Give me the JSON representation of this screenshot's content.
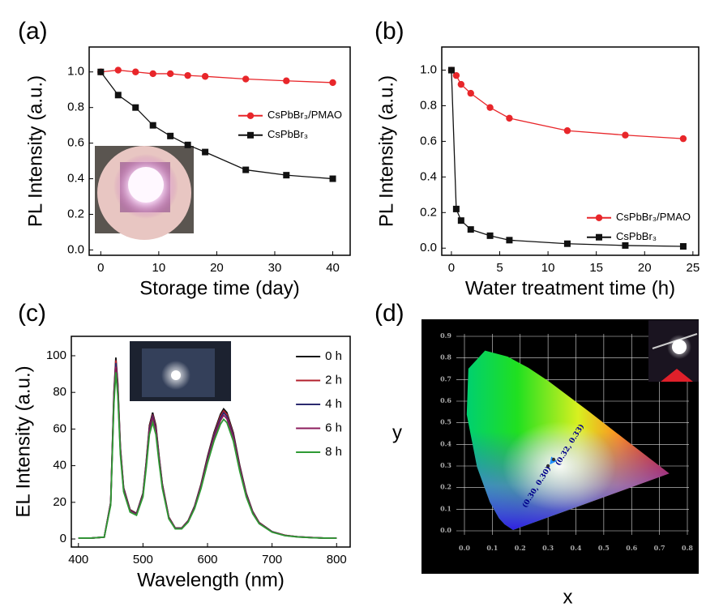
{
  "chart_data": [
    {
      "type": "line",
      "panel_label": "(a)",
      "xlabel": "Storage time (day)",
      "ylabel": "PL Intensity (a.u.)",
      "x": [
        0,
        3,
        6,
        9,
        12,
        15,
        18,
        25,
        32,
        40
      ],
      "series": [
        {
          "name": "CsPbBr₃/PMAO",
          "color": "#e8262a",
          "marker": "circle",
          "values": [
            1.0,
            1.01,
            1.0,
            0.99,
            0.99,
            0.98,
            0.975,
            0.96,
            0.95,
            0.94
          ]
        },
        {
          "name": "CsPbBr₃",
          "color": "#111111",
          "marker": "square",
          "values": [
            1.0,
            0.87,
            0.8,
            0.7,
            0.64,
            0.59,
            0.55,
            0.45,
            0.42,
            0.4
          ]
        }
      ],
      "xlim": [
        -2,
        43
      ],
      "ylim": [
        -0.03,
        1.14
      ],
      "xticks": [
        0,
        10,
        20,
        30,
        40
      ],
      "yticks": [
        {
          "value": 0,
          "label": "0.0"
        },
        0.2,
        0.4,
        0.6,
        0.8,
        {
          "value": 1,
          "label": "1.0"
        }
      ],
      "legend": "center right"
    },
    {
      "type": "line",
      "panel_label": "(b)",
      "xlabel": "Water treatment time (h)",
      "ylabel": "PL Intensity (a.u.)",
      "x": [
        0,
        0.5,
        1,
        2,
        4,
        6,
        12,
        18,
        24
      ],
      "series": [
        {
          "name": "CsPbBr₃/PMAO",
          "color": "#e8262a",
          "marker": "circle",
          "values": [
            1.0,
            0.97,
            0.92,
            0.87,
            0.79,
            0.73,
            0.66,
            0.635,
            0.615
          ]
        },
        {
          "name": "CsPbBr₃",
          "color": "#111111",
          "marker": "square",
          "values": [
            1.0,
            0.22,
            0.155,
            0.105,
            0.07,
            0.045,
            0.025,
            0.015,
            0.01
          ]
        }
      ],
      "xlim": [
        -1,
        25.6
      ],
      "ylim": [
        -0.04,
        1.13
      ],
      "xticks": [
        0,
        5,
        10,
        15,
        20,
        25
      ],
      "yticks": [
        {
          "value": 0,
          "label": "0.0"
        },
        0.2,
        0.4,
        0.6,
        0.8,
        {
          "value": 1,
          "label": "1.0"
        }
      ],
      "legend": "lower right"
    },
    {
      "type": "line",
      "panel_label": "(c)",
      "xlabel": "Wavelength (nm)",
      "ylabel": "EL Intensity (a.u.)",
      "x": [
        400,
        420,
        440,
        450,
        455,
        458,
        461,
        465,
        470,
        480,
        490,
        500,
        505,
        510,
        515,
        520,
        525,
        530,
        540,
        550,
        560,
        570,
        580,
        590,
        600,
        610,
        620,
        625,
        630,
        640,
        650,
        660,
        670,
        680,
        700,
        720,
        740,
        760,
        780,
        800
      ],
      "series": [
        {
          "name": "0 h",
          "color": "#111111",
          "values": [
            0.5,
            0.5,
            1,
            20,
            80,
            99,
            85,
            50,
            28,
            16,
            14,
            25,
            42,
            62,
            69,
            62,
            45,
            30,
            12,
            6,
            6,
            10,
            18,
            30,
            45,
            58,
            68,
            71,
            69,
            58,
            40,
            25,
            15,
            9,
            4,
            2,
            1.2,
            0.8,
            0.5,
            0.4
          ]
        },
        {
          "name": "2 h",
          "color": "#b3202c",
          "values": [
            0.5,
            0.5,
            1,
            19.7,
            78.8,
            97.5,
            83.7,
            49.3,
            27.6,
            15.8,
            13.8,
            24.6,
            41.4,
            61.1,
            68,
            61.1,
            44.3,
            29.6,
            11.8,
            5.9,
            5.9,
            9.9,
            17.7,
            29.6,
            44.3,
            57.1,
            67,
            69.9,
            68,
            57.1,
            39.4,
            24.6,
            14.8,
            8.9,
            3.9,
            2,
            1.2,
            0.8,
            0.5,
            0.4
          ]
        },
        {
          "name": "4 h",
          "color": "#2b2a6e",
          "values": [
            0.5,
            0.5,
            1,
            19.4,
            77.6,
            96,
            82.5,
            48.5,
            27.2,
            15.5,
            13.6,
            24.3,
            40.7,
            60.1,
            66.9,
            60.1,
            43.7,
            29.1,
            11.6,
            5.8,
            5.8,
            9.7,
            17.5,
            29.1,
            43.7,
            56.3,
            66,
            68.9,
            66.9,
            56.3,
            38.8,
            24.3,
            14.6,
            8.7,
            3.9,
            1.9,
            1.2,
            0.8,
            0.5,
            0.4
          ]
        },
        {
          "name": "6 h",
          "color": "#8c1d5c",
          "values": [
            0.5,
            0.5,
            1,
            19,
            76,
            94,
            80.8,
            47.5,
            26.6,
            15.2,
            13.3,
            23.8,
            39.9,
            58.9,
            65.6,
            58.9,
            42.8,
            28.5,
            11.4,
            5.7,
            5.7,
            9.5,
            17.1,
            28.5,
            42.8,
            55.1,
            64.6,
            67.5,
            65.6,
            55.1,
            38,
            23.8,
            14.3,
            8.6,
            3.8,
            1.9,
            1.1,
            0.8,
            0.5,
            0.4
          ]
        },
        {
          "name": "8 h",
          "color": "#2e9a34",
          "values": [
            0.5,
            0.5,
            1,
            18.4,
            73.6,
            91,
            78.2,
            46,
            25.8,
            14.7,
            12.9,
            23,
            38.6,
            57,
            63.5,
            57,
            41.4,
            27.6,
            11,
            5.5,
            5.5,
            9.2,
            16.6,
            27.6,
            41.4,
            53.4,
            62.6,
            65.3,
            63.5,
            53.4,
            36.8,
            23,
            13.8,
            8.3,
            3.7,
            1.8,
            1.1,
            0.7,
            0.5,
            0.4
          ]
        }
      ],
      "xlim": [
        389,
        821
      ],
      "ylim": [
        -4.4,
        110.6
      ],
      "xticks": [
        400,
        500,
        600,
        700,
        800
      ],
      "yticks": [
        0,
        20,
        40,
        60,
        80,
        100
      ],
      "legend": "upper right"
    },
    {
      "type": "scatter",
      "panel_label": "(d)",
      "xlabel": "x",
      "ylabel": "y",
      "x": [
        0.3,
        0.32
      ],
      "values": [
        0.3,
        0.33
      ],
      "value_labels": [
        "(0.30, 0.30)",
        "(0.32, 0.33)"
      ],
      "color": "#1e90ff",
      "xlim": [
        0,
        0.8
      ],
      "ylim": [
        0,
        0.9
      ],
      "xticks": [
        {
          "value": 0,
          "label": "0.0"
        },
        0.1,
        0.2,
        0.3,
        0.4,
        0.5,
        0.6,
        0.7,
        0.8
      ],
      "yticks": [
        {
          "value": 0,
          "label": "0.0"
        },
        0.1,
        0.2,
        0.3,
        0.4,
        0.5,
        0.6,
        0.7,
        0.8,
        0.9
      ],
      "grid": true
    }
  ]
}
